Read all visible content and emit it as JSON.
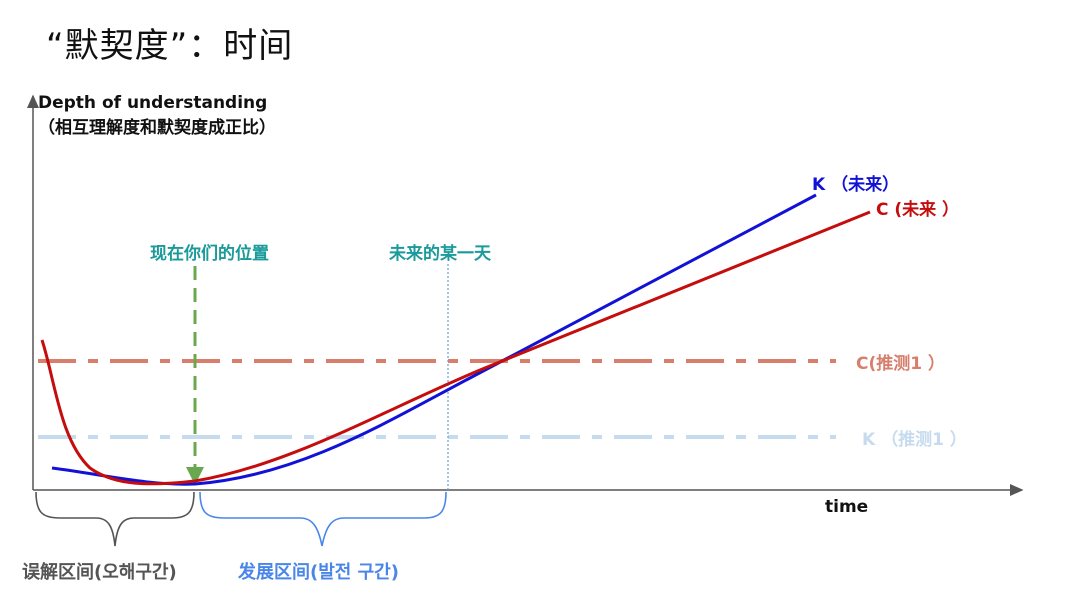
{
  "title": "“默契度”：时间",
  "y_axis": {
    "label_line1": "Depth of understanding",
    "label_line2": "（相互理解度和默契度成正比）"
  },
  "x_axis": {
    "label": "time"
  },
  "markers": {
    "now": "现在你们的位置",
    "future_day": "未来的某一天"
  },
  "curves": {
    "k_future": {
      "label": "K （未来）",
      "color": "#1212d6"
    },
    "c_future": {
      "label": "C (未来 ）",
      "color": "#c50d0d"
    },
    "c_guess": {
      "label": "C(推测1 ）",
      "color": "#d77f6c"
    },
    "k_guess": {
      "label": "K （推测1 ）",
      "color": "#c7dbee"
    }
  },
  "braces": {
    "misunderstanding": {
      "label": "误解区间(오해구간)",
      "color": "#555555"
    },
    "development": {
      "label": "发展区间(발전 구간)",
      "color": "#4a86e8"
    }
  },
  "colors": {
    "marker_text": "#1a9a9a",
    "now_arrow": "#6aa84f",
    "future_line": "#6fa8dc",
    "axis": "#555555"
  }
}
